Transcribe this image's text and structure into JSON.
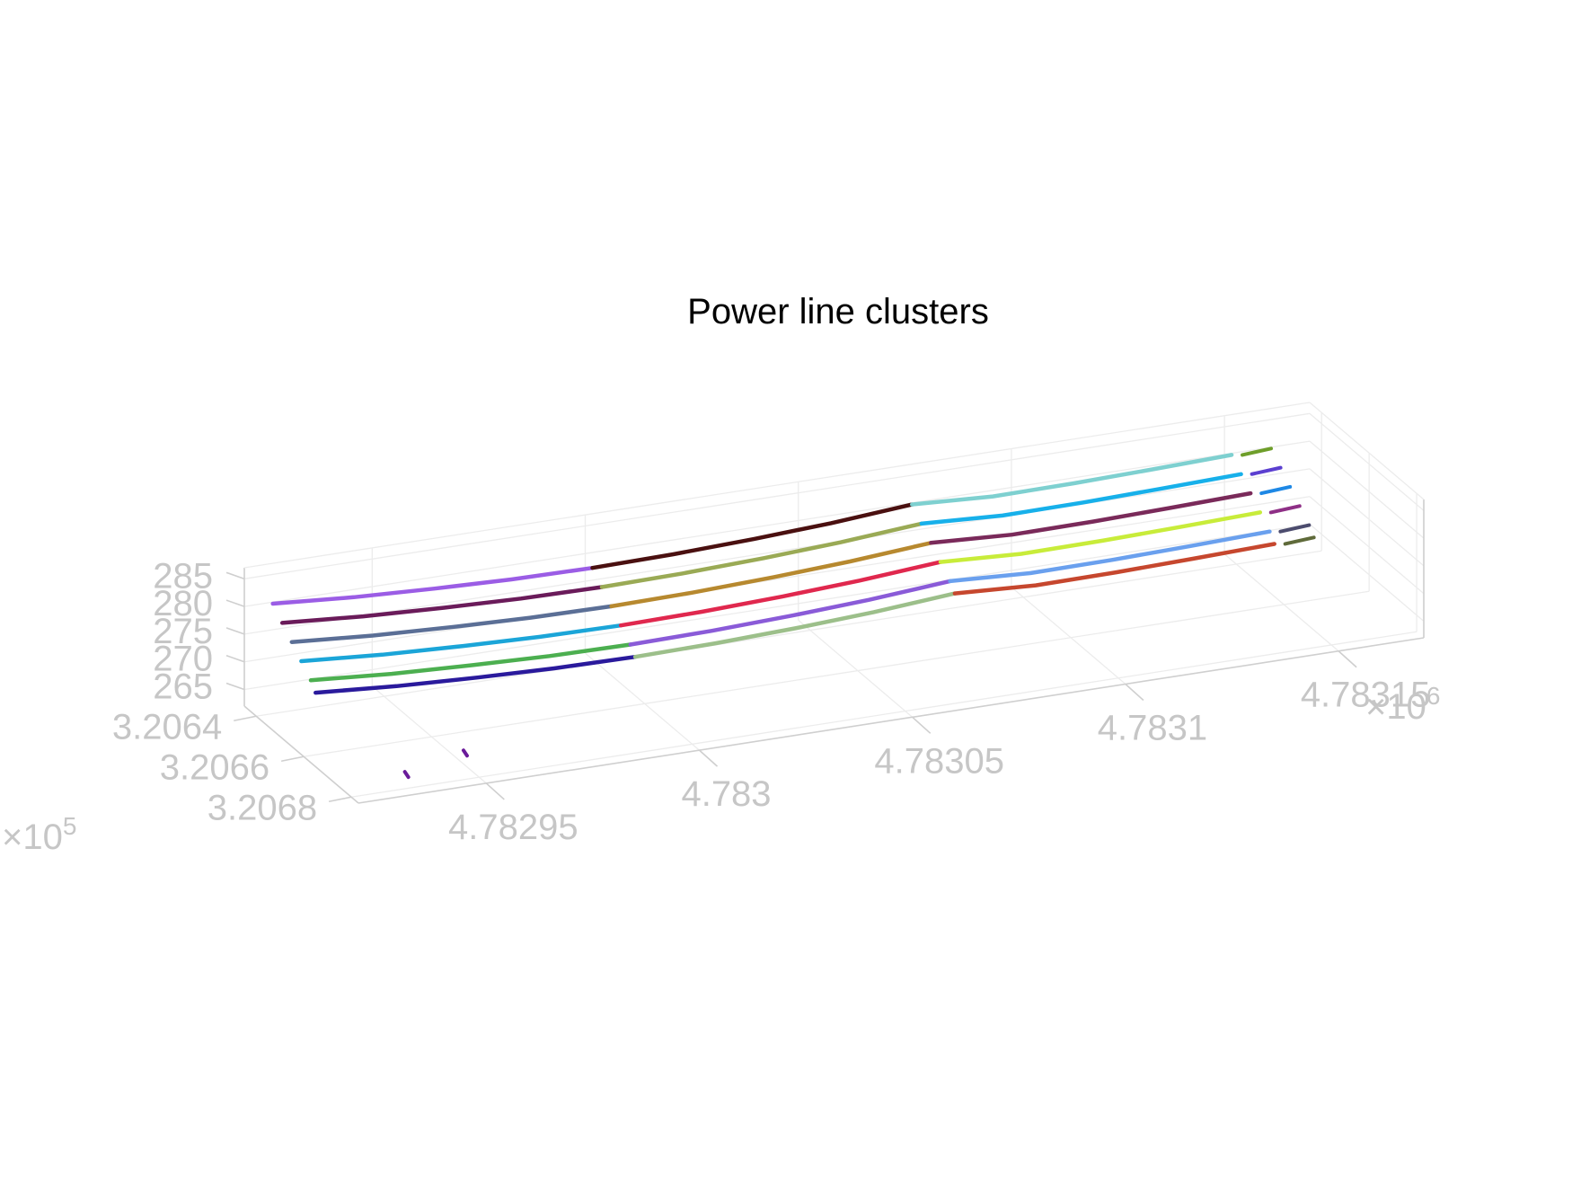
{
  "chart_data": {
    "type": "scatter",
    "title": "Power line clusters",
    "xlabel": "",
    "ylabel": "",
    "zlabel": "",
    "x_axis": {
      "ticks": [
        "4.78295",
        "4.783",
        "4.78305",
        "4.7831",
        "4.78315"
      ],
      "exponent_base": "×10",
      "exponent_power": "6",
      "lim": [
        4.78292,
        4.78317
      ]
    },
    "y_axis": {
      "ticks": [
        "3.2064",
        "3.2066",
        "3.2068"
      ],
      "exponent_base": "×10",
      "exponent_power": "5",
      "lim": [
        320635,
        320683
      ]
    },
    "z_axis": {
      "ticks": [
        "265",
        "270",
        "275",
        "280",
        "285"
      ],
      "lim": [
        262,
        287
      ]
    },
    "grid": "on",
    "legend": "none",
    "cable_colors": [
      "#9b5de5",
      "#6a1b5a",
      "#5b6f96",
      "#1ba5d8",
      "#4caf50",
      "#2a1a9c",
      "#4a1010",
      "#9aaa55",
      "#b7892f",
      "#e0284e",
      "#8a5bd8",
      "#9cbf8a",
      "#7ed0d0",
      "#17b0ea",
      "#7a2a5a",
      "#c8ec3a",
      "#6aa0ee",
      "#c6472e",
      "#6e9e2a",
      "#5b3fd0",
      "#1e88e5",
      "#8e2f86",
      "#4c4c6e",
      "#5f6a3a",
      "#2a9d8f"
    ],
    "series": [
      {
        "x": [
          4.782925,
          4.782944,
          4.782963,
          4.782981,
          4.783,
          4.783019,
          4.783038,
          4.783056,
          4.783075,
          4.783094,
          4.783113,
          4.783131,
          4.78315
        ],
        "y": [
          320638,
          320638,
          320638,
          320638,
          320638,
          320638,
          320638,
          320638,
          320638,
          320638,
          320638,
          320638,
          320638
        ],
        "z": [
          281.0,
          279.9,
          279.2,
          278.7,
          278.5,
          278.7,
          279.2,
          279.9,
          281.0,
          280.2,
          280.3,
          280.6,
          281.0
        ]
      },
      {
        "x": [
          4.782925,
          4.782944,
          4.782963,
          4.782981,
          4.783,
          4.783019,
          4.783038,
          4.783056,
          4.783075,
          4.783094,
          4.783113,
          4.783131,
          4.78315
        ],
        "y": [
          320642,
          320642,
          320642,
          320642,
          320642,
          320642,
          320642,
          320642,
          320642,
          320642,
          320642,
          320642,
          320642
        ],
        "z": [
          279.0,
          277.9,
          277.2,
          276.7,
          276.5,
          276.7,
          277.2,
          277.9,
          279.0,
          278.2,
          278.3,
          278.6,
          279.0
        ]
      },
      {
        "x": [
          4.782925,
          4.782944,
          4.782963,
          4.782981,
          4.783,
          4.783019,
          4.783038,
          4.783056,
          4.783075,
          4.783094,
          4.783113,
          4.783131,
          4.78315
        ],
        "y": [
          320646,
          320646,
          320646,
          320646,
          320646,
          320646,
          320646,
          320646,
          320646,
          320646,
          320646,
          320646,
          320646
        ],
        "z": [
          277.0,
          275.9,
          275.2,
          274.7,
          274.5,
          274.7,
          275.2,
          275.9,
          277.0,
          276.2,
          276.3,
          276.6,
          277.0
        ]
      },
      {
        "x": [
          4.782925,
          4.782944,
          4.782963,
          4.782981,
          4.783,
          4.783019,
          4.783038,
          4.783056,
          4.783075,
          4.783094,
          4.783113,
          4.783131,
          4.78315
        ],
        "y": [
          320650,
          320650,
          320650,
          320650,
          320650,
          320650,
          320650,
          320650,
          320650,
          320650,
          320650,
          320650,
          320650
        ],
        "z": [
          275.0,
          273.9,
          273.2,
          272.7,
          272.5,
          272.7,
          273.2,
          273.9,
          275.0,
          274.2,
          274.3,
          274.6,
          275.0
        ]
      },
      {
        "x": [
          4.782925,
          4.782944,
          4.782963,
          4.782981,
          4.783,
          4.783019,
          4.783038,
          4.783056,
          4.783075,
          4.783094,
          4.783113,
          4.783131,
          4.78315
        ],
        "y": [
          320654,
          320654,
          320654,
          320654,
          320654,
          320654,
          320654,
          320654,
          320654,
          320654,
          320654,
          320654,
          320654
        ],
        "z": [
          273.0,
          271.9,
          271.2,
          270.7,
          270.5,
          270.7,
          271.2,
          271.9,
          273.0,
          272.2,
          272.3,
          272.6,
          273.0
        ]
      },
      {
        "x": [
          4.782925,
          4.782944,
          4.782963,
          4.782981,
          4.783,
          4.783019,
          4.783038,
          4.783056,
          4.783075,
          4.783094,
          4.783113,
          4.783131,
          4.78315
        ],
        "y": [
          320656,
          320656,
          320656,
          320656,
          320656,
          320656,
          320656,
          320656,
          320656,
          320656,
          320656,
          320656,
          320656
        ],
        "z": [
          271.5,
          270.4,
          269.7,
          269.2,
          269.0,
          269.2,
          269.7,
          270.4,
          271.5,
          270.7,
          270.8,
          271.1,
          271.5
        ]
      }
    ],
    "outliers": [
      {
        "x": 4.782948,
        "y": 320677,
        "z": 266.0
      },
      {
        "x": 4.782932,
        "y": 320681,
        "z": 265.5
      }
    ]
  }
}
